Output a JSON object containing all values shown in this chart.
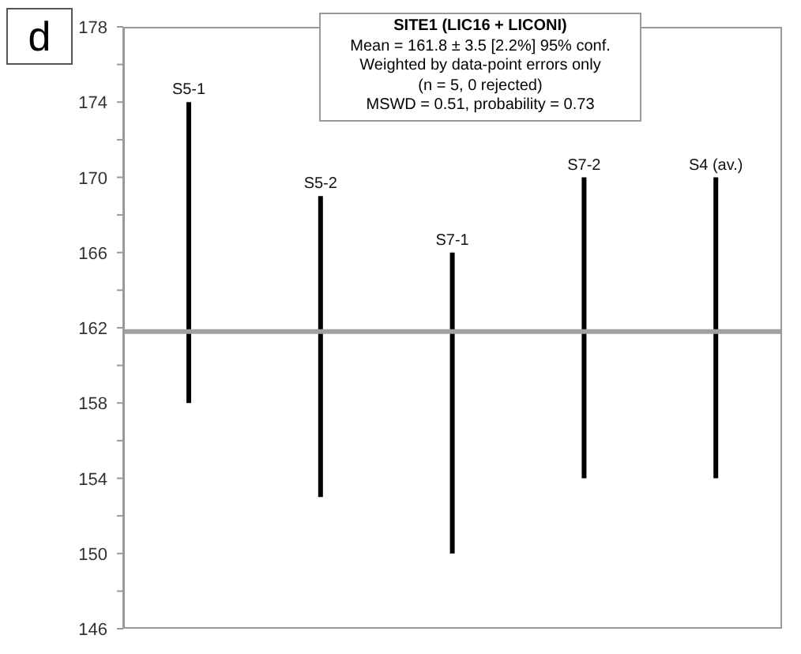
{
  "chart_data": {
    "type": "bar",
    "categories": [
      "S5-1",
      "S5-2",
      "S7-1",
      "S7-2",
      "S4 (av.)"
    ],
    "base": [
      158,
      153,
      150,
      154,
      154
    ],
    "values": [
      16,
      16,
      16,
      16,
      16
    ],
    "color": "#000000",
    "ylim": [
      146,
      178
    ],
    "yticks": [
      146,
      {
        "value": 148,
        "label": null
      },
      150,
      {
        "value": 152,
        "label": null
      },
      154,
      {
        "value": 156,
        "label": null
      },
      158,
      {
        "value": 160,
        "label": null
      },
      162,
      {
        "value": 164,
        "label": null
      },
      166,
      {
        "value": 168,
        "label": null
      },
      170,
      {
        "value": 172,
        "label": null
      },
      174,
      {
        "value": 176,
        "label": null
      },
      178
    ],
    "ref_lines": [
      {
        "axis": "y",
        "value": 161.8,
        "color": "#a0a0a0"
      }
    ],
    "annotations": [
      "d",
      "SITE1 (LIC16 + LICONI)",
      "Mean = 161.8 ± 3.5  [2.2%]  95% conf.",
      "Weighted by data-point errors only",
      "(n = 5, 0 rejected)",
      "MSWD = 0.51, probability = 0.73"
    ],
    "grid": false,
    "legend": false
  }
}
